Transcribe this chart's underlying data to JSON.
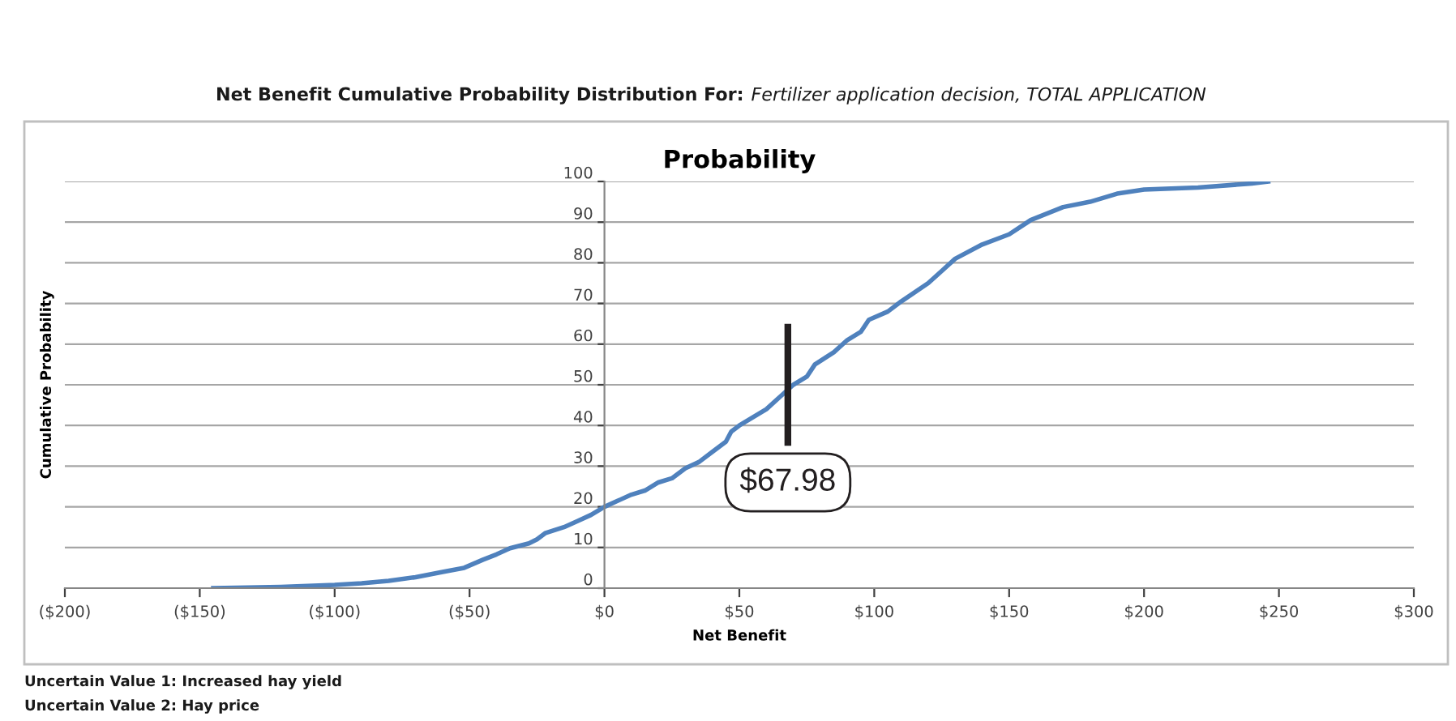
{
  "chart_data": {
    "type": "line",
    "title": "Probability",
    "xlabel": "Net Benefit",
    "ylabel": "Cumulative Probability",
    "annotations": [
      "Net Benefit Cumulative Probability Distribution For:",
      "Fertilizer application decision, TOTAL APPLICATION",
      "Uncertain Value 1: Increased hay yield",
      "Uncertain Value 2: Hay price"
    ],
    "series": [
      {
        "color": "#4f81bd",
        "x": [
          -145,
          -120,
          -100,
          -90,
          -80,
          -70,
          -60,
          -52,
          -45,
          -40,
          -35,
          -28,
          -25,
          -22,
          -15,
          -10,
          -5,
          0,
          5,
          10,
          15,
          20,
          25,
          30,
          35,
          40,
          45,
          47,
          50,
          55,
          60,
          65,
          70,
          75,
          78,
          85,
          90,
          95,
          98,
          105,
          110,
          120,
          125,
          130,
          140,
          150,
          158,
          170,
          180,
          190,
          200,
          220,
          240,
          246
        ],
        "values": [
          0,
          0.3,
          0.8,
          1.2,
          1.8,
          2.7,
          4,
          5,
          7,
          8.3,
          9.8,
          11,
          12,
          13.5,
          15,
          16.5,
          18,
          20,
          21.5,
          23,
          24,
          26,
          27,
          29.5,
          31,
          33.5,
          36,
          38.5,
          40,
          42,
          44,
          47,
          50,
          52,
          55,
          58,
          61,
          63,
          66,
          68,
          70.5,
          75,
          78,
          81,
          84.5,
          87,
          90.5,
          93.7,
          95,
          97,
          98,
          98.5,
          99.5,
          100
        ]
      }
    ],
    "ref_lines": [
      {
        "axis": "x",
        "value": 67.98,
        "label": "$67.98",
        "color": "#231f20"
      }
    ],
    "xlim": [
      -200,
      300
    ],
    "ylim": [
      0,
      100
    ],
    "xticks": [
      {
        "value": -200,
        "label": "($200)"
      },
      {
        "value": -150,
        "label": "($150)"
      },
      {
        "value": -100,
        "label": "($100)"
      },
      {
        "value": -50,
        "label": "($50)"
      },
      {
        "value": 0,
        "label": "$0"
      },
      {
        "value": 50,
        "label": "$50"
      },
      {
        "value": 100,
        "label": "$100"
      },
      {
        "value": 150,
        "label": "$150"
      },
      {
        "value": 200,
        "label": "$200"
      },
      {
        "value": 250,
        "label": "$250"
      },
      {
        "value": 300,
        "label": "$300"
      }
    ],
    "yticks": [
      0,
      10,
      20,
      30,
      40,
      50,
      60,
      70,
      80,
      90,
      100
    ],
    "grid": "y",
    "marker": "none",
    "line_style": "solid"
  }
}
